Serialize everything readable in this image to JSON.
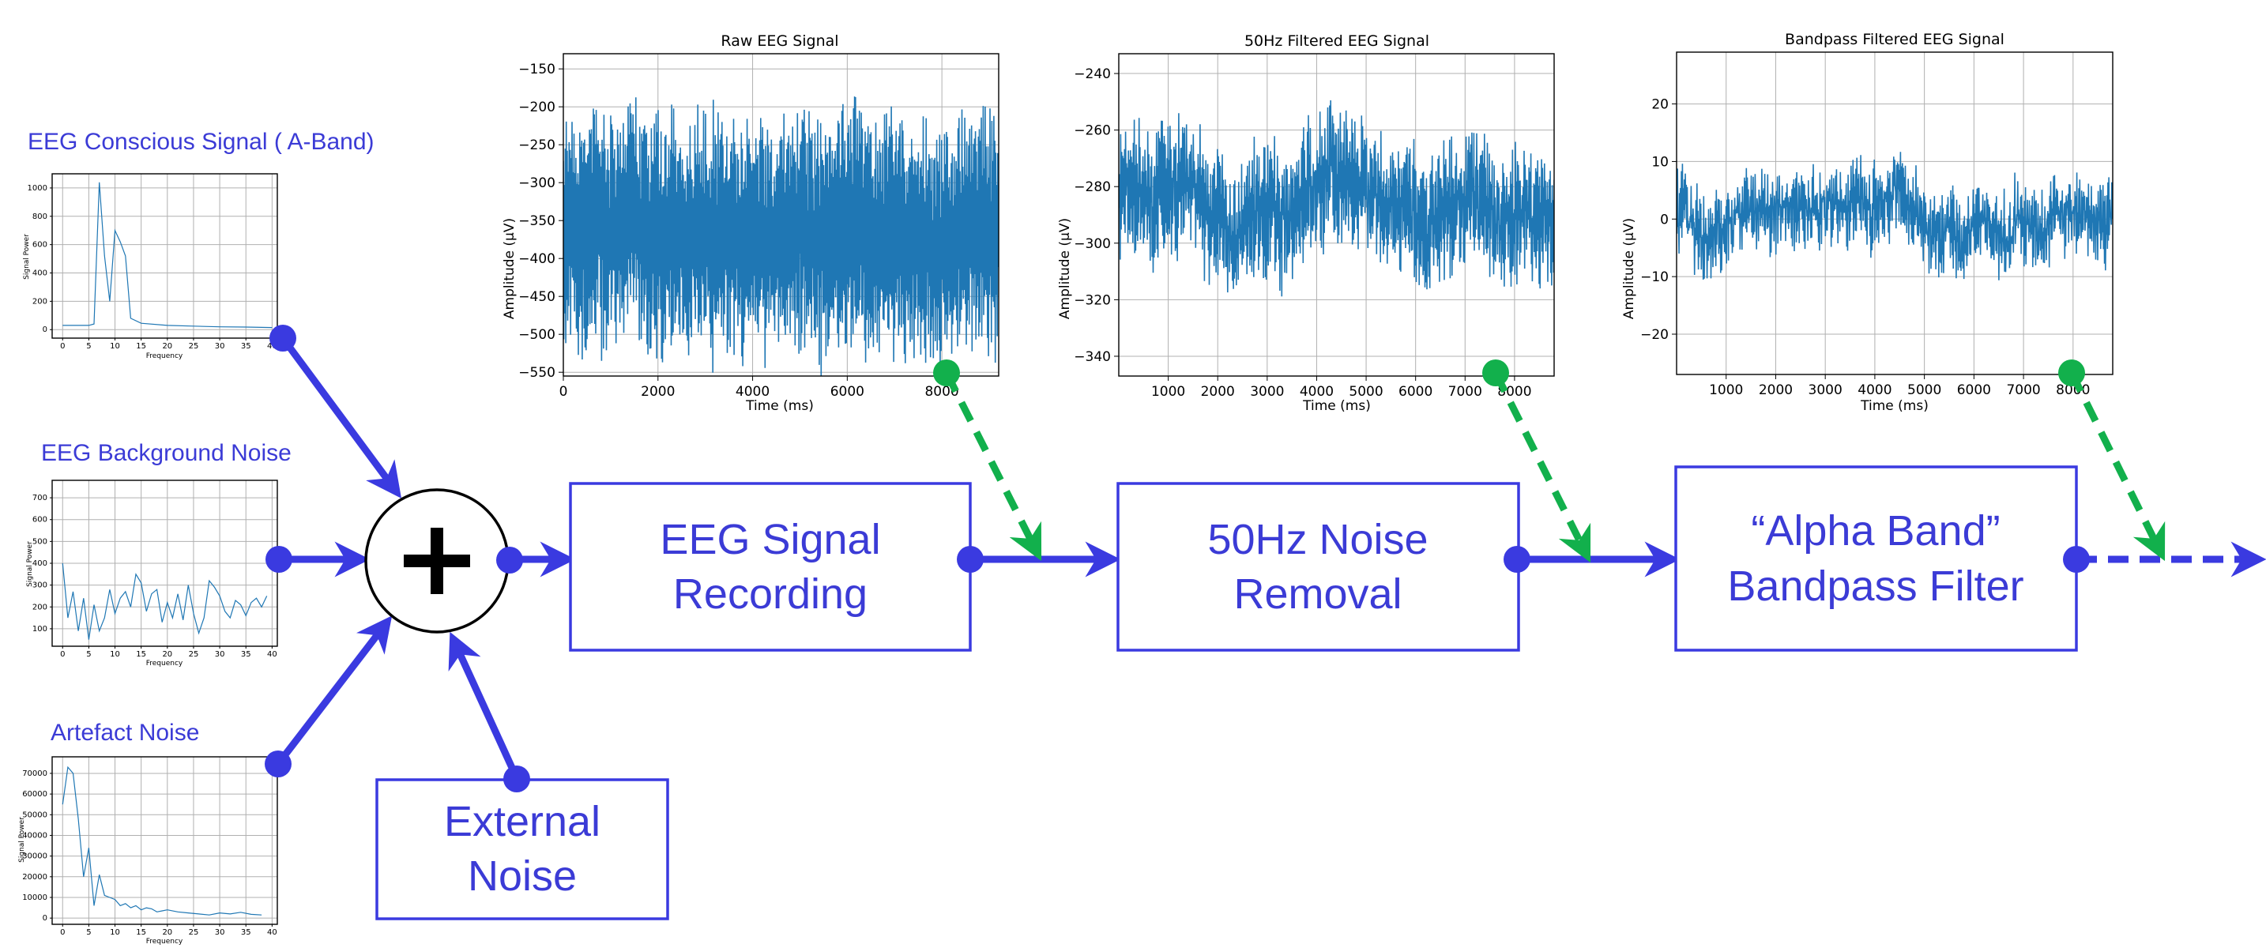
{
  "inputs": {
    "conscious": "EEG Conscious Signal ( A-Band)",
    "background": "EEG Background Noise",
    "artefact": "Artefact Noise",
    "external": [
      "External",
      "Noise"
    ]
  },
  "blocks": {
    "recording": [
      "EEG Signal",
      "Recording"
    ],
    "noise_removal": [
      "50Hz Noise",
      "Removal"
    ],
    "bandpass": [
      "“Alpha Band”",
      "Bandpass Filter"
    ]
  },
  "colors": {
    "flow": "#3a3ae0",
    "tap": "#12b04c",
    "signal": "#1f77b4"
  },
  "icons": {
    "summing_junction": "plus-icon"
  },
  "chart_data": [
    {
      "type": "line",
      "title": "Raw EEG Signal",
      "xlabel": "Time (ms)",
      "ylabel": "Amplitude (μV)",
      "xlim": [
        0,
        9200
      ],
      "ylim": [
        -555,
        -130
      ],
      "xticks": [
        0,
        2000,
        4000,
        6000,
        8000
      ],
      "yticks": [
        -150,
        -200,
        -250,
        -300,
        -350,
        -400,
        -450,
        -500,
        -550
      ],
      "signal": {
        "center": -360,
        "halfwidth": 105,
        "noise": 25
      }
    },
    {
      "type": "line",
      "title": "50Hz Filtered EEG Signal",
      "xlabel": "Time (ms)",
      "ylabel": "Amplitude  (μV)",
      "xlim": [
        0,
        8800
      ],
      "ylim": [
        -347,
        -233
      ],
      "xticks": [
        1000,
        2000,
        3000,
        4000,
        5000,
        6000,
        7000,
        8000
      ],
      "yticks": [
        -240,
        -260,
        -280,
        -300,
        -320,
        -340
      ],
      "signal": {
        "center": -285,
        "halfwidth": 12,
        "noise": 10
      }
    },
    {
      "type": "line",
      "title": "Bandpass Filtered EEG Signal",
      "xlabel": "Time (ms)",
      "ylabel": "Amplitude  (μV)",
      "xlim": [
        0,
        8800
      ],
      "ylim": [
        -27,
        29
      ],
      "xticks": [
        1000,
        2000,
        3000,
        4000,
        5000,
        6000,
        7000,
        8000
      ],
      "yticks": [
        20,
        10,
        0,
        -10,
        -20
      ],
      "signal": {
        "center": 0,
        "halfwidth": 3,
        "noise": 4
      }
    },
    {
      "type": "line",
      "xlabel": "Frequency",
      "ylabel": "Signal Power",
      "xlim": [
        -2,
        41
      ],
      "ylim": [
        -60,
        1100
      ],
      "xticks": [
        0,
        5,
        10,
        15,
        20,
        25,
        30,
        35,
        40
      ],
      "yticks": [
        0,
        200,
        400,
        600,
        800,
        1000
      ],
      "x": [
        0,
        5,
        6,
        7,
        8,
        9,
        10,
        11,
        12,
        13,
        15,
        20,
        25,
        30,
        35,
        40
      ],
      "y": [
        30,
        30,
        40,
        1040,
        520,
        200,
        700,
        620,
        520,
        80,
        45,
        30,
        25,
        20,
        18,
        15
      ]
    },
    {
      "type": "line",
      "xlabel": "Frequency",
      "ylabel": "Signal Power",
      "xlim": [
        -2,
        41
      ],
      "ylim": [
        20,
        780
      ],
      "xticks": [
        0,
        5,
        10,
        15,
        20,
        25,
        30,
        35,
        40
      ],
      "yticks": [
        100,
        200,
        300,
        400,
        500,
        600,
        700
      ],
      "x": [
        0,
        1,
        2,
        3,
        4,
        5,
        6,
        7,
        8,
        9,
        10,
        11,
        12,
        13,
        14,
        15,
        16,
        17,
        18,
        19,
        20,
        21,
        22,
        23,
        24,
        25,
        26,
        27,
        28,
        29,
        30,
        31,
        32,
        33,
        34,
        35,
        36,
        37,
        38,
        39
      ],
      "y": [
        400,
        150,
        270,
        90,
        240,
        50,
        210,
        90,
        150,
        280,
        170,
        240,
        270,
        200,
        350,
        310,
        180,
        260,
        280,
        130,
        220,
        150,
        260,
        140,
        300,
        170,
        80,
        150,
        320,
        290,
        250,
        180,
        150,
        230,
        210,
        160,
        220,
        240,
        200,
        250
      ]
    },
    {
      "type": "line",
      "xlabel": "Frequency",
      "ylabel": "Signal Power",
      "xlim": [
        -2,
        41
      ],
      "ylim": [
        -3000,
        78000
      ],
      "xticks": [
        0,
        5,
        10,
        15,
        20,
        25,
        30,
        35,
        40
      ],
      "yticks": [
        0,
        10000,
        20000,
        30000,
        40000,
        50000,
        60000,
        70000
      ],
      "x": [
        0,
        1,
        2,
        3,
        4,
        5,
        6,
        7,
        8,
        9,
        10,
        11,
        12,
        13,
        14,
        15,
        16,
        17,
        18,
        19,
        20,
        22,
        24,
        26,
        28,
        30,
        32,
        34,
        36,
        38
      ],
      "y": [
        55000,
        73000,
        70000,
        48000,
        20000,
        34000,
        6000,
        21000,
        11000,
        10000,
        9000,
        6000,
        7000,
        5000,
        6000,
        4000,
        5000,
        4500,
        3000,
        3500,
        4000,
        3000,
        2500,
        2000,
        1500,
        2500,
        2000,
        2800,
        1800,
        1500
      ]
    }
  ]
}
